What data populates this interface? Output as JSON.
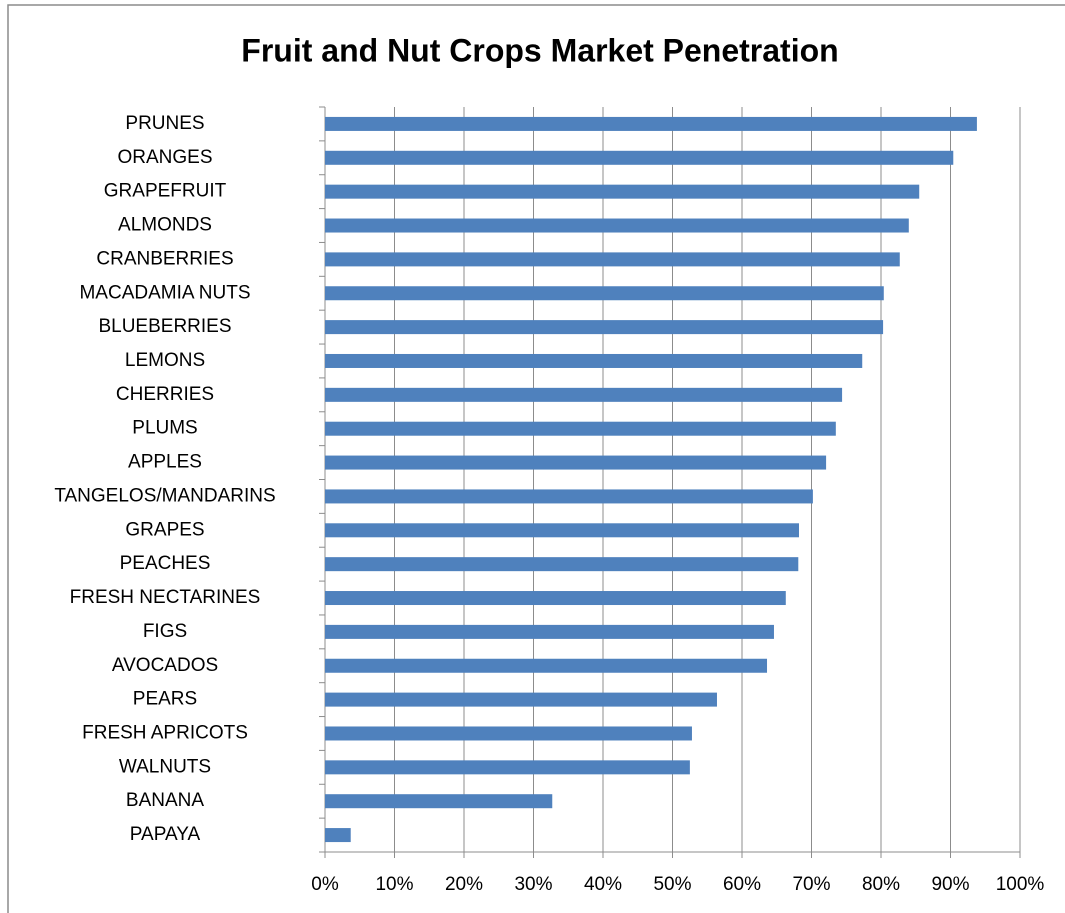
{
  "chart_data": {
    "type": "bar",
    "orientation": "horizontal",
    "title": "Fruit and Nut Crops Market Penetration",
    "categories": [
      "PRUNES",
      "ORANGES",
      "GRAPEFRUIT",
      "ALMONDS",
      "CRANBERRIES",
      "MACADAMIA NUTS",
      "BLUEBERRIES",
      "LEMONS",
      "CHERRIES",
      "PLUMS",
      "APPLES",
      "TANGELOS/MANDARINS",
      "GRAPES",
      "PEACHES",
      "FRESH NECTARINES",
      "FIGS",
      "AVOCADOS",
      "PEARS",
      "FRESH APRICOTS",
      "WALNUTS",
      "BANANA",
      "PAPAYA"
    ],
    "values": [
      93.8,
      90.4,
      85.5,
      84.0,
      82.7,
      80.4,
      80.3,
      77.3,
      74.4,
      73.5,
      72.1,
      70.2,
      68.2,
      68.1,
      66.3,
      64.6,
      63.6,
      56.4,
      52.8,
      52.5,
      32.7,
      3.7
    ],
    "color": "#4f81bd",
    "xlim": [
      0,
      100
    ],
    "xticks": [
      {
        "value": 0,
        "label": "0%"
      },
      {
        "value": 10,
        "label": "10%"
      },
      {
        "value": 20,
        "label": "20%"
      },
      {
        "value": 30,
        "label": "30%"
      },
      {
        "value": 40,
        "label": "40%"
      },
      {
        "value": 50,
        "label": "50%"
      },
      {
        "value": 60,
        "label": "60%"
      },
      {
        "value": 70,
        "label": "70%"
      },
      {
        "value": 80,
        "label": "80%"
      },
      {
        "value": 90,
        "label": "90%"
      },
      {
        "value": 100,
        "label": "100%"
      }
    ],
    "grid": true
  }
}
